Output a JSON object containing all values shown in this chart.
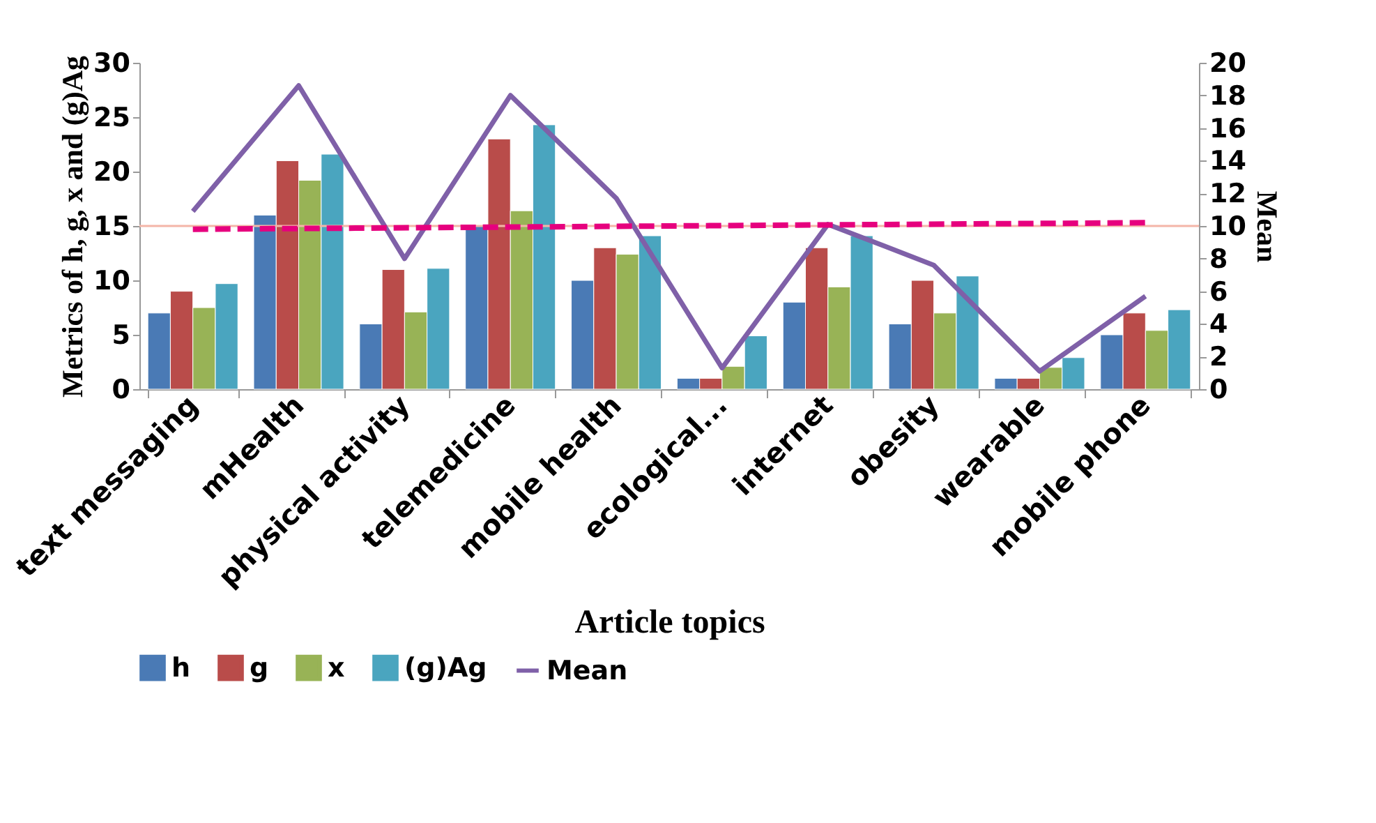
{
  "chart_data": {
    "type": "bar",
    "xlabel": "Article topics",
    "ylabel": "Metrics  of  h,  g,  x and  (g)Ag",
    "y2label": "Mean",
    "categories": [
      "text messaging",
      "mHealth",
      "physical activity",
      "telemedicine",
      "mobile health",
      "ecological...",
      "internet",
      "obesity",
      "wearable",
      "mobile phone"
    ],
    "series": [
      {
        "name": "h",
        "color": "#4a7ab5",
        "values": [
          7,
          16,
          6,
          15,
          10,
          1,
          8,
          6,
          1,
          5
        ]
      },
      {
        "name": "g",
        "color": "#b94c4a",
        "values": [
          9,
          21,
          11,
          23,
          13,
          1,
          13,
          10,
          1,
          7
        ]
      },
      {
        "name": "x",
        "color": "#98b356",
        "values": [
          7.5,
          19.2,
          7.1,
          16.4,
          12.4,
          2.1,
          9.4,
          7,
          2,
          5.4
        ]
      },
      {
        "name": "(g)Ag",
        "color": "#4aa5bf",
        "values": [
          9.7,
          21.6,
          11.1,
          24.3,
          14.1,
          4.9,
          14.1,
          10.4,
          2.9,
          7.3
        ]
      },
      {
        "name": "Mean",
        "type": "line",
        "axis": "y2",
        "color": "#7f60a8",
        "values": [
          10.9,
          18.6,
          8,
          18,
          11.7,
          1.3,
          10.1,
          7.6,
          1.1,
          5.7
        ]
      },
      {
        "type": "line",
        "axis": "y2",
        "color": "#e6007e",
        "line_style": "dashed",
        "x": [
          "text messaging",
          "mobile phone"
        ],
        "values": [
          9.8,
          10.2
        ]
      }
    ],
    "ylim": [
      0,
      30
    ],
    "yticks": [
      0,
      5,
      10,
      15,
      20,
      25,
      30
    ],
    "y2lim": [
      0,
      20
    ],
    "y2ticks": [
      0,
      2,
      4,
      6,
      8,
      10,
      12,
      14,
      16,
      18,
      20
    ],
    "ref_lines": [
      {
        "axis": "y",
        "value": 15,
        "color": "#f4b6a8"
      }
    ],
    "grid": false,
    "legend": "bottom",
    "marker": "none"
  }
}
